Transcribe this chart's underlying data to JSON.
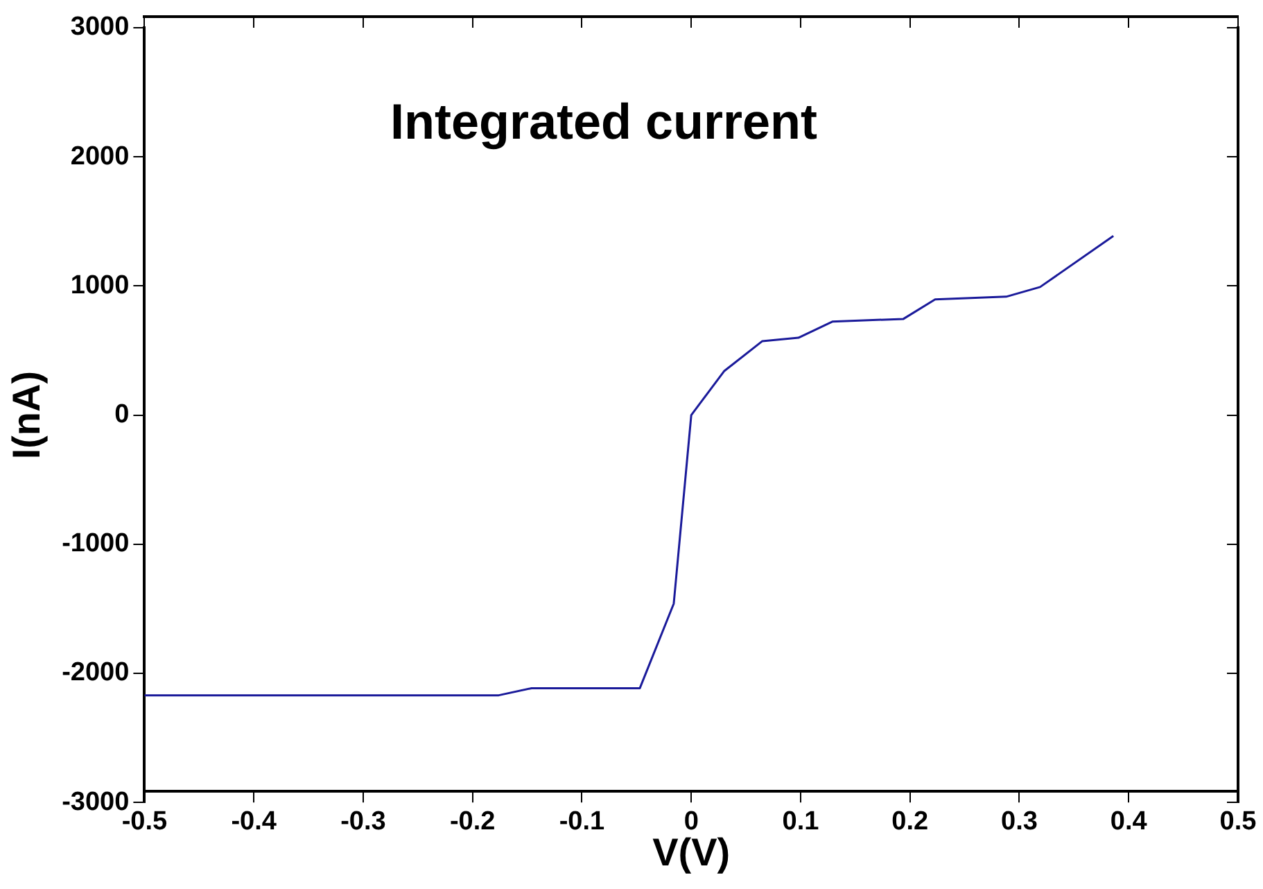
{
  "chart_data": {
    "type": "line",
    "ylabel": "I(nA)",
    "xlabel": "V(V)",
    "annotations": [
      "Integrated current"
    ],
    "x": [
      -0.5,
      -0.176,
      -0.146,
      -0.047,
      -0.016,
      0,
      0.03,
      0.065,
      0.098,
      0.129,
      0.194,
      0.223,
      0.288,
      0.319,
      0.386
    ],
    "series": [
      {
        "color": "#1a1a9a",
        "values": [
          -2170,
          -2170,
          -2115,
          -2115,
          -1460,
          0,
          340,
          573,
          599,
          724,
          745,
          896,
          917,
          992,
          1387
        ]
      }
    ],
    "xlim": [
      -0.5,
      0.5
    ],
    "xticks": [
      -0.5,
      -0.4,
      -0.3,
      -0.2,
      -0.1,
      0,
      0.1,
      0.2,
      0.3,
      0.4,
      0.5
    ],
    "ylim": [
      -3000,
      3000
    ],
    "yticks": [
      -3000,
      -2000,
      -1000,
      0,
      1000,
      2000,
      3000
    ],
    "grid": false,
    "legend": false,
    "marker": "none",
    "line_style": "solid"
  }
}
